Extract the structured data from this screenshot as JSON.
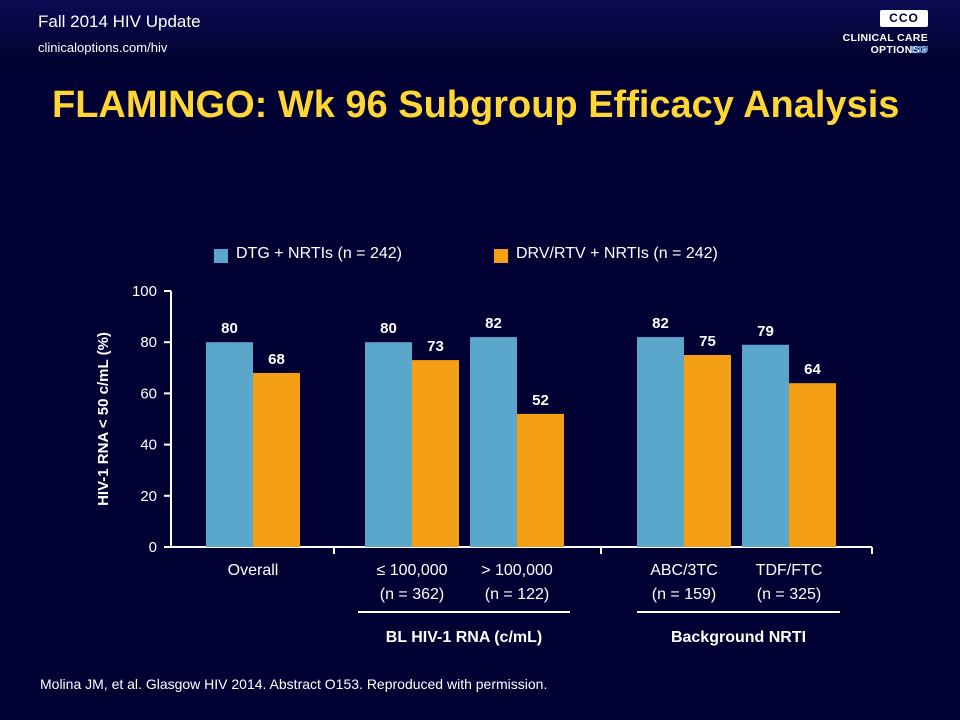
{
  "header": {
    "conference_title": "Fall 2014 HIV Update",
    "url": "clinicaloptions.com/hiv",
    "logo_mark": "CCO",
    "logo_text": "CLINICAL CARE OPTIONS®",
    "logo_sub": "HIV"
  },
  "slide": {
    "title": "FLAMINGO: Wk 96 Subgroup Efficacy Analysis",
    "citation": "Molina JM, et al. Glasgow HIV 2014. Abstract O153. Reproduced with permission."
  },
  "colors": {
    "background": "#000033",
    "title": "#ffd633",
    "series_dtg": "#5ba7cc",
    "series_drv": "#f5a014",
    "text": "#ffffff"
  },
  "chart_data": {
    "type": "bar",
    "ylabel": "HIV-1 RNA < 50 c/mL (%)",
    "ylim": [
      0,
      100
    ],
    "yticks": [
      0,
      20,
      40,
      60,
      80,
      100
    ],
    "grid": false,
    "legend_position": "top",
    "categories": [
      [
        "Overall"
      ],
      [
        "≤ 100,000",
        "(n = 362)"
      ],
      [
        "> 100,000",
        "(n = 122)"
      ],
      [
        "ABC/3TC",
        "(n = 159)"
      ],
      [
        "TDF/FTC",
        "(n = 325)"
      ]
    ],
    "series": [
      {
        "name": "DTG + NRTIs (n = 242)",
        "values": [
          80,
          80,
          82,
          82,
          79
        ]
      },
      {
        "name": "DRV/RTV + NRTIs (n = 242)",
        "values": [
          68,
          73,
          52,
          75,
          64
        ]
      }
    ],
    "group_labels": [
      {
        "label": "BL HIV-1 RNA (c/mL)",
        "categories": [
          1,
          2
        ]
      },
      {
        "label": "Background NRTI",
        "categories": [
          3,
          4
        ]
      }
    ]
  }
}
